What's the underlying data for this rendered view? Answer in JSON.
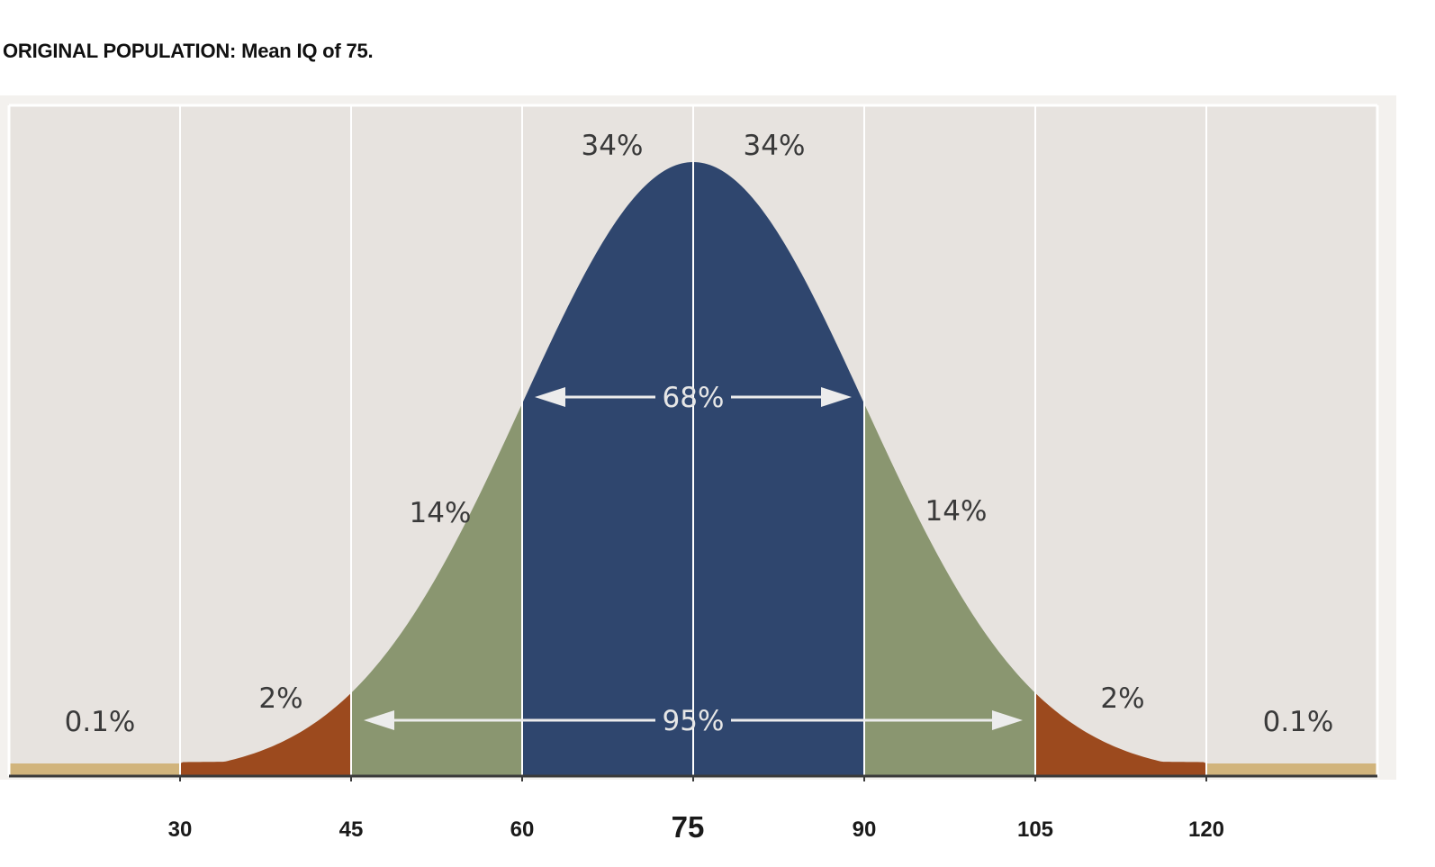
{
  "chart_data": {
    "type": "area",
    "title": "ORIGINAL POPULATION: Mean IQ of 75.",
    "mean": 75,
    "sd": 15,
    "x_ticks": [
      "30",
      "45",
      "60",
      "75",
      "90",
      "105",
      "120"
    ],
    "x_tick_values": [
      30,
      45,
      60,
      75,
      90,
      105,
      120
    ],
    "xlim": [
      15,
      135
    ],
    "regions": [
      {
        "from": 15,
        "to": 30,
        "label": "0.1%",
        "color": "#d1b47c"
      },
      {
        "from": 30,
        "to": 45,
        "label": "2%",
        "color": "#9c4a1e"
      },
      {
        "from": 45,
        "to": 60,
        "label": "14%",
        "color": "#8a9670"
      },
      {
        "from": 60,
        "to": 75,
        "label": "34%",
        "color": "#2f466e"
      },
      {
        "from": 75,
        "to": 90,
        "label": "34%",
        "color": "#2f466e"
      },
      {
        "from": 90,
        "to": 105,
        "label": "14%",
        "color": "#8a9670"
      },
      {
        "from": 105,
        "to": 120,
        "label": "2%",
        "color": "#9c4a1e"
      },
      {
        "from": 120,
        "to": 135,
        "label": "0.1%",
        "color": "#d1b47c"
      }
    ],
    "annotations": [
      {
        "label": "68%",
        "from": 60,
        "to": 90
      },
      {
        "label": "95%",
        "from": 45,
        "to": 105
      }
    ],
    "grid": true,
    "legend": "none",
    "colors": {
      "background": "#e7e3df",
      "grid": "#ffffff",
      "axis": "#3a3a3a"
    }
  }
}
